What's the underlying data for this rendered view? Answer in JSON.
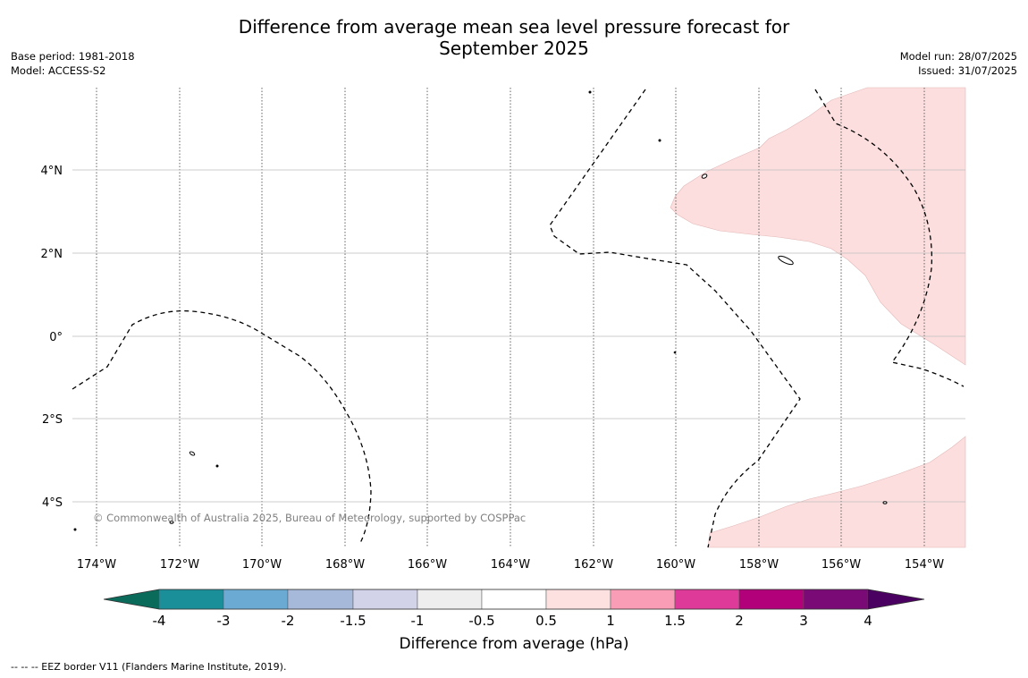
{
  "title_line1": "Difference from average mean sea level pressure forecast for",
  "title_line2": "September 2025",
  "base_period": "Base period: 1981-2018",
  "model": "Model: ACCESS-S2",
  "model_run": "Model run: 28/07/2025",
  "issued": "Issued: 31/07/2025",
  "copyright": "© Commonwealth of Australia 2025, Bureau of Meteorology, supported by COSPPac",
  "footnote": "--  --  -- EEZ border V11 (Flanders Marine Institute, 2019).",
  "map": {
    "lon_labels": [
      "174°W",
      "172°W",
      "170°W",
      "168°W",
      "166°W",
      "164°W",
      "162°W",
      "160°W",
      "158°W",
      "156°W",
      "154°W"
    ],
    "lat_labels": [
      "4°N",
      "2°N",
      "0°",
      "2°S",
      "4°S"
    ]
  },
  "colorbar": {
    "title": "Difference from average (hPa)",
    "labels": [
      "-4",
      "-3",
      "-2",
      "-1.5",
      "-1",
      "-0.5",
      "0.5",
      "1",
      "1.5",
      "2",
      "3",
      "4"
    ],
    "colors": [
      "#1b8f99",
      "#6aaad3",
      "#a7b9db",
      "#d2d2e8",
      "#eeeeee",
      "#ffffff",
      "#fde0e0",
      "#f89db5",
      "#de3a9a",
      "#b2007a",
      "#7a0a76"
    ],
    "under_color": "#0b6b5b",
    "over_color": "#4a0060"
  },
  "shading_color": "#fddede",
  "shaded_category": "0.5 to 1"
}
